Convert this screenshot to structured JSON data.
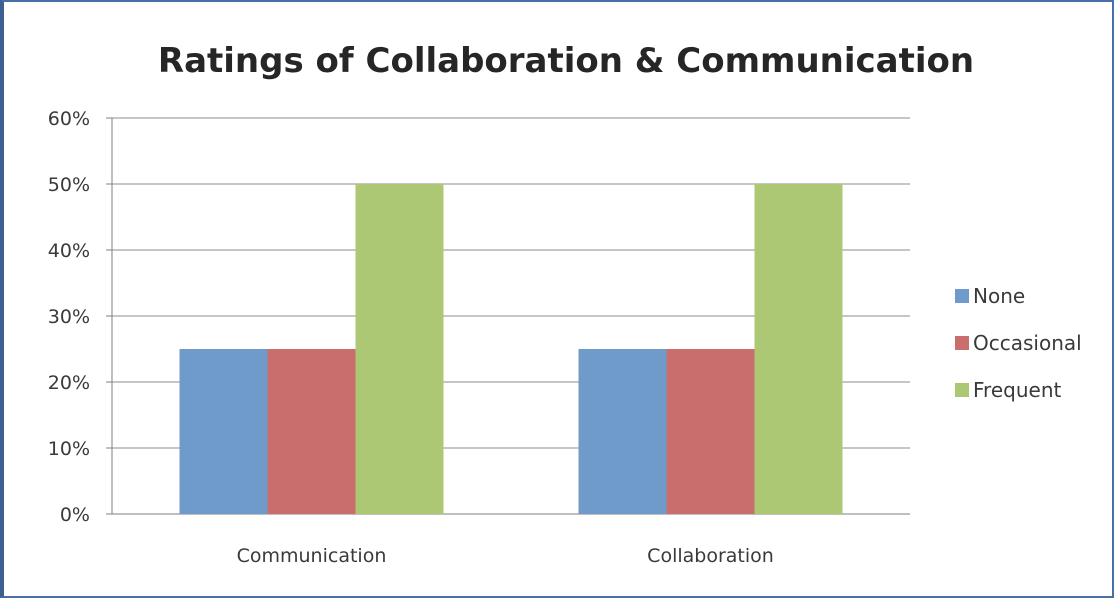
{
  "chart_data": {
    "type": "bar",
    "title": "Ratings of Collaboration & Communication",
    "categories": [
      "Communication",
      "Collaboration"
    ],
    "series": [
      {
        "name": "None",
        "values": [
          25,
          25
        ],
        "color": "#6f9bcb"
      },
      {
        "name": "Occasional",
        "values": [
          25,
          25
        ],
        "color": "#c96e6c"
      },
      {
        "name": "Frequent",
        "values": [
          50,
          50
        ],
        "color": "#adc874"
      }
    ],
    "ylim": [
      0,
      60
    ],
    "yticks": [
      0,
      10,
      20,
      30,
      40,
      50,
      60
    ],
    "ytick_labels": [
      "0%",
      "10%",
      "20%",
      "30%",
      "40%",
      "50%",
      "60%"
    ],
    "grid": true,
    "legend_position": "right"
  }
}
